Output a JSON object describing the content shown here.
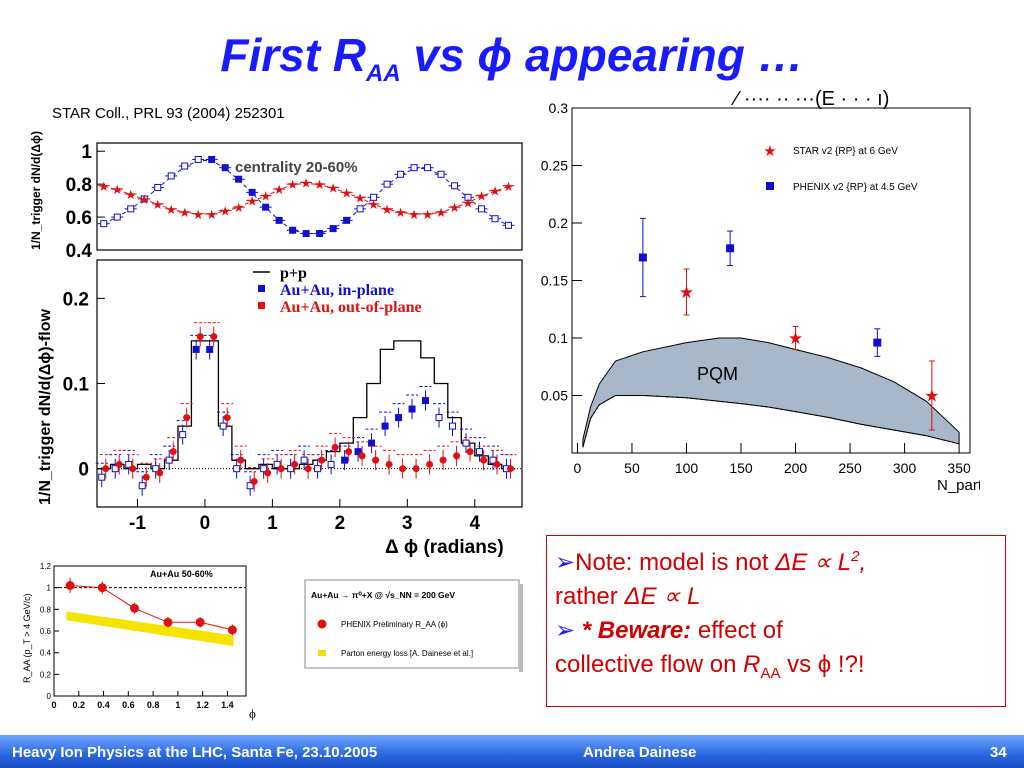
{
  "slide": {
    "title_main": "First R",
    "title_sub": "AA",
    "title_rest": " vs ϕ appearing …",
    "cutoff_text": "⁄ ···· ·· ···(E · · · ı)",
    "citation": "STAR Coll., PRL 93 (2004) 252301"
  },
  "colors": {
    "title": "#1a1aff",
    "red": "#e01010",
    "blue": "#1010cc",
    "pqm_fill": "#a8b8c8"
  },
  "note": {
    "line1_pre": "Note: model is not ",
    "line1_math": "ΔE ∝ L",
    "line1_sup": "2",
    "line1_post": ",",
    "line2_pre": "rather ",
    "line2_math": "ΔE ∝ L",
    "line3_star": "* Beware:",
    "line3_post": " effect of",
    "line4_pre": "collective flow on ",
    "line4_R": "R",
    "line4_sub": "AA",
    "line4_post": " vs ϕ !?!"
  },
  "footer": {
    "left": "Heavy Ion Physics at the LHC, Santa Fe, 23.10.2005",
    "center": "Andrea Dainese",
    "page": "34"
  },
  "chart_data": [
    {
      "id": "star_top",
      "type": "scatter",
      "annotation": "centrality 20-60%",
      "ylabel": "1/N_trigger dN/d(Δϕ)",
      "ylim": [
        0.4,
        1.05
      ],
      "yticks": [
        0.4,
        0.6,
        0.8,
        1
      ],
      "xlim": [
        -1.6,
        4.7
      ],
      "series": [
        {
          "name": "in-plane",
          "color": "#1010cc",
          "x": [
            -1.5,
            -1.3,
            -1.1,
            -0.9,
            -0.7,
            -0.5,
            -0.3,
            -0.1,
            0.1,
            0.3,
            0.5,
            0.7,
            0.9,
            1.1,
            1.3,
            1.5,
            1.7,
            1.9,
            2.1,
            2.3,
            2.5,
            2.7,
            2.9,
            3.1,
            3.3,
            3.5,
            3.7,
            3.9,
            4.1,
            4.3,
            4.5
          ],
          "y": [
            0.56,
            0.6,
            0.65,
            0.71,
            0.78,
            0.85,
            0.91,
            0.95,
            0.95,
            0.9,
            0.83,
            0.75,
            0.66,
            0.58,
            0.52,
            0.5,
            0.5,
            0.53,
            0.58,
            0.65,
            0.72,
            0.8,
            0.86,
            0.9,
            0.9,
            0.86,
            0.79,
            0.72,
            0.65,
            0.59,
            0.55
          ]
        },
        {
          "name": "out-of-plane",
          "color": "#e01010",
          "x": [
            -1.5,
            -1.3,
            -1.1,
            -0.9,
            -0.7,
            -0.5,
            -0.3,
            -0.1,
            0.1,
            0.3,
            0.5,
            0.7,
            0.9,
            1.1,
            1.3,
            1.5,
            1.7,
            1.9,
            2.1,
            2.3,
            2.5,
            2.7,
            2.9,
            3.1,
            3.3,
            3.5,
            3.7,
            3.9,
            4.1,
            4.3,
            4.5
          ],
          "y": [
            0.79,
            0.77,
            0.74,
            0.71,
            0.68,
            0.65,
            0.63,
            0.62,
            0.62,
            0.64,
            0.66,
            0.7,
            0.73,
            0.77,
            0.8,
            0.81,
            0.8,
            0.78,
            0.75,
            0.72,
            0.68,
            0.65,
            0.63,
            0.62,
            0.62,
            0.63,
            0.66,
            0.69,
            0.73,
            0.76,
            0.79
          ]
        }
      ]
    },
    {
      "id": "star_bottom",
      "type": "line",
      "ylabel": "1/N_trigger dN/d(Δϕ)-flow",
      "xlabel": "Δ ϕ (radians)",
      "ylim": [
        -0.045,
        0.245
      ],
      "yticks": [
        0,
        0.1,
        0.2
      ],
      "xlim": [
        -1.6,
        4.7
      ],
      "xticks": [
        -1,
        0,
        1,
        2,
        3,
        4
      ],
      "legend": [
        "p+p",
        "Au+Au, in-plane",
        "Au+Au, out-of-plane"
      ],
      "legend_colors": [
        "#000000",
        "#1010cc",
        "#e01010"
      ],
      "series": [
        {
          "name": "p+p",
          "color": "#000000",
          "x": [
            -1.5,
            -1.3,
            -1.1,
            -0.9,
            -0.7,
            -0.5,
            -0.3,
            -0.1,
            0.1,
            0.3,
            0.5,
            0.7,
            0.9,
            1.1,
            1.3,
            1.5,
            1.7,
            1.9,
            2.1,
            2.3,
            2.5,
            2.7,
            2.9,
            3.1,
            3.3,
            3.5,
            3.7,
            3.9,
            4.1,
            4.3,
            4.5
          ],
          "y": [
            0.0,
            0.005,
            0.0,
            0.005,
            0.0,
            0.01,
            0.05,
            0.15,
            0.15,
            0.05,
            0.01,
            0.0,
            0.005,
            0.0,
            0.0,
            0.005,
            0.01,
            0.02,
            0.03,
            0.06,
            0.1,
            0.14,
            0.15,
            0.15,
            0.13,
            0.1,
            0.06,
            0.03,
            0.015,
            0.005,
            0.0
          ]
        },
        {
          "name": "Au+Au, in-plane",
          "color": "#1010cc",
          "x": [
            -1.5,
            -1.3,
            -1.1,
            -0.9,
            -0.7,
            -0.5,
            -0.3,
            -0.1,
            0.1,
            0.3,
            0.5,
            0.7,
            0.9,
            1.1,
            1.3,
            1.5,
            1.7,
            1.9,
            2.1,
            2.3,
            2.5,
            2.7,
            2.9,
            3.1,
            3.3,
            3.5,
            3.7,
            3.9,
            4.1,
            4.3,
            4.5
          ],
          "y": [
            -0.01,
            0.0,
            0.005,
            -0.02,
            0.0,
            0.01,
            0.04,
            0.14,
            0.14,
            0.05,
            0.0,
            -0.02,
            0.0,
            0.005,
            0.0,
            0.01,
            0.0,
            0.005,
            0.01,
            0.02,
            0.03,
            0.05,
            0.06,
            0.07,
            0.08,
            0.06,
            0.05,
            0.03,
            0.02,
            0.01,
            0.0
          ]
        },
        {
          "name": "Au+Au, out-of-plane",
          "color": "#e01010",
          "x": [
            -1.5,
            -1.3,
            -1.1,
            -0.9,
            -0.7,
            -0.5,
            -0.3,
            -0.1,
            0.1,
            0.3,
            0.5,
            0.7,
            0.9,
            1.1,
            1.3,
            1.5,
            1.7,
            1.9,
            2.1,
            2.3,
            2.5,
            2.7,
            2.9,
            3.1,
            3.3,
            3.5,
            3.7,
            3.9,
            4.1,
            4.3,
            4.5
          ],
          "y": [
            0.0,
            0.005,
            0.0,
            -0.01,
            -0.005,
            0.02,
            0.06,
            0.155,
            0.155,
            0.06,
            0.01,
            -0.015,
            -0.005,
            0.0,
            0.005,
            0.0,
            0.01,
            0.025,
            0.02,
            0.015,
            0.01,
            0.005,
            0.0,
            0.0,
            0.005,
            0.01,
            0.015,
            0.02,
            0.01,
            0.005,
            0.0
          ]
        }
      ]
    },
    {
      "id": "v2_npart",
      "type": "scatter",
      "xlabel": "N_part",
      "xlim": [
        -5,
        360
      ],
      "ylim": [
        0,
        0.3
      ],
      "xticks": [
        0,
        50,
        100,
        150,
        200,
        250,
        300,
        350
      ],
      "yticks": [
        0.05,
        0.1,
        0.15,
        0.2,
        0.25,
        0.3
      ],
      "band_label": "PQM",
      "band": {
        "x": [
          5,
          12,
          20,
          35,
          60,
          100,
          130,
          150,
          175,
          200,
          230,
          260,
          290,
          320,
          350
        ],
        "upper": [
          0.012,
          0.04,
          0.06,
          0.08,
          0.088,
          0.096,
          0.1,
          0.1,
          0.096,
          0.09,
          0.083,
          0.074,
          0.062,
          0.045,
          0.018
        ],
        "lower": [
          0.005,
          0.03,
          0.042,
          0.05,
          0.05,
          0.048,
          0.045,
          0.043,
          0.04,
          0.036,
          0.031,
          0.025,
          0.02,
          0.015,
          0.008
        ]
      },
      "series": [
        {
          "name": "STAR v2 {RP} at 6 GeV",
          "color": "#e01010",
          "marker": "star",
          "x": [
            100,
            200,
            325
          ],
          "y": [
            0.14,
            0.1,
            0.05
          ],
          "err": [
            0.02,
            0.01,
            0.03
          ]
        },
        {
          "name": "PHENIX v2 {RP} at 4.5 GeV",
          "color": "#1010cc",
          "marker": "square",
          "x": [
            60,
            140,
            275
          ],
          "y": [
            0.17,
            0.178,
            0.096
          ],
          "err": [
            0.034,
            0.015,
            0.012
          ]
        }
      ]
    },
    {
      "id": "raa_phi",
      "type": "scatter",
      "annotation": "Au+Au 50-60%",
      "ylabel": "R_AA (p_T > 4 GeV/c)",
      "xlabel": "ϕ",
      "xlim": [
        0,
        1.55
      ],
      "ylim": [
        0,
        1.2
      ],
      "xticks": [
        0,
        0.2,
        0.4,
        0.6,
        0.8,
        1,
        1.2,
        1.4
      ],
      "yticks": [
        0,
        0.2,
        0.4,
        0.6,
        0.8,
        1,
        1.2
      ],
      "band": {
        "x": [
          0.1,
          1.45
        ],
        "upper": [
          0.78,
          0.56
        ],
        "lower": [
          0.7,
          0.46
        ]
      },
      "series": [
        {
          "name": "PHENIX Preliminary R_AA(ϕ)",
          "color": "#e01010",
          "x": [
            0.13,
            0.39,
            0.65,
            0.92,
            1.18,
            1.44
          ],
          "y": [
            1.02,
            1.0,
            0.81,
            0.68,
            0.68,
            0.61
          ],
          "err": [
            0.07,
            0.06,
            0.05,
            0.05,
            0.05,
            0.05
          ]
        }
      ]
    },
    {
      "id": "raa_legend",
      "type": "table",
      "header": "Au+Au → π⁰+X @ √s_NN = 200 GeV",
      "items": [
        "PHENIX Preliminary R_AA (ϕ)",
        "Parton energy loss [A. Dainese et al.]"
      ],
      "colors": [
        "#e01010",
        "#f0e000"
      ]
    }
  ]
}
